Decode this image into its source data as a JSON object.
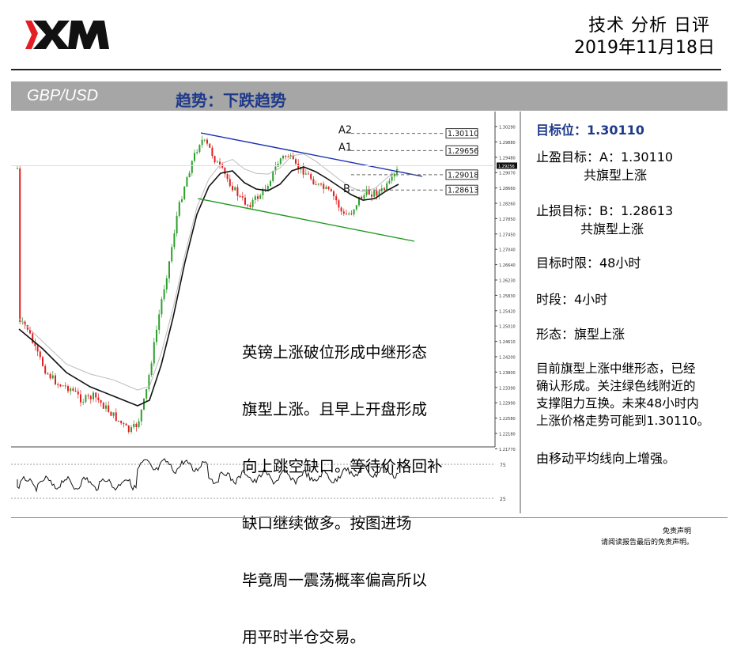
{
  "header": {
    "brand": "XM",
    "title": "技术 分析 日评",
    "date": "2019年11月18日"
  },
  "banner": {
    "pair": "GBP/USD",
    "trend": "趋势：下跌趋势"
  },
  "chart": {
    "price_ticks": [
      "1.30290",
      "1.29880",
      "1.29480",
      "1.29070",
      "1.28660",
      "1.28260",
      "1.27850",
      "1.27450",
      "1.27040",
      "1.26640",
      "1.26230",
      "1.25830",
      "1.25420",
      "1.25010",
      "1.24610",
      "1.24200",
      "1.23800",
      "1.23390",
      "1.22990",
      "1.22580",
      "1.22180",
      "1.21770"
    ],
    "current_price": "1.29256",
    "levels": [
      {
        "label": "A2",
        "price": "1.30110",
        "value": 1.3011
      },
      {
        "label": "A1",
        "price": "1.29656",
        "value": 1.29656
      },
      {
        "label": "",
        "price": "1.29018",
        "value": 1.29018
      },
      {
        "label": "B",
        "price": "1.28613",
        "value": 1.28613
      }
    ],
    "osc_ticks": [
      "75",
      "25"
    ]
  },
  "overlay_text": [
    "英镑上涨破位形成中继形态",
    "旗型上涨。且早上开盘形成",
    "向上跳空缺口。等待价格回补",
    "缺口继续做多。按图进场",
    "毕竟周一震荡概率偏高所以",
    "用平时半仓交易。"
  ],
  "sidebar": {
    "target": "目标位：1.30110",
    "take_profit": "止盈目标：A：1.30110",
    "take_profit_note": "共旗型上涨",
    "stop_loss": "止损目标：B：1.28613",
    "stop_loss_note": "共旗型上涨",
    "time_limit": "目标时限：48小时",
    "period": "时段：4小时",
    "pattern": "形态：旗型上涨",
    "desc": [
      "目前旗型上涨中继形态，已经",
      "确认形成。关注绿色线附近的",
      "支撑阻力互换。未来48小时内",
      "上涨价格走势可能到1.30110。"
    ],
    "ma_note": "由移动平均线向上增强。"
  },
  "footer": {
    "disclaimer_title": "免责声明",
    "disclaimer_text": "请阅读报告最后的免责声明。"
  },
  "colors": {
    "brand_red": "#e31e24",
    "title_blue": "#1f3a8a",
    "banner_gray": "#a6a6a6",
    "up_candle": "#2e9e2e",
    "down_candle": "#e02020",
    "channel_top": "#1a2fb0",
    "channel_bottom": "#1f9a1f"
  }
}
